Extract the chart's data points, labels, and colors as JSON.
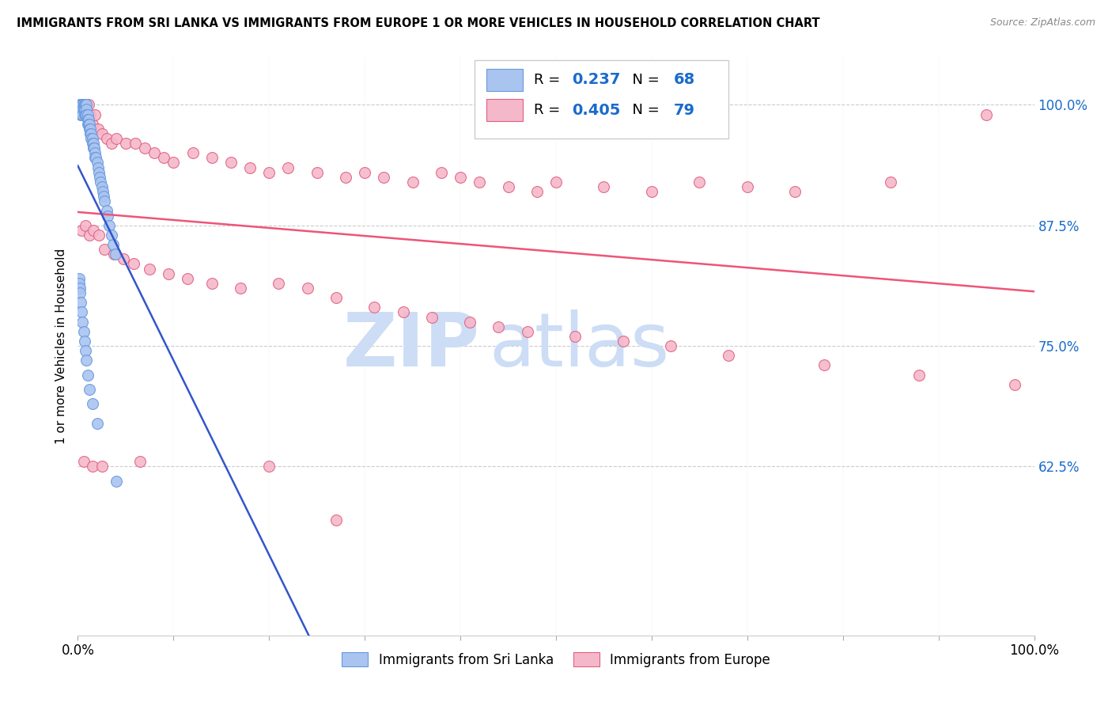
{
  "title": "IMMIGRANTS FROM SRI LANKA VS IMMIGRANTS FROM EUROPE 1 OR MORE VEHICLES IN HOUSEHOLD CORRELATION CHART",
  "source": "Source: ZipAtlas.com",
  "ylabel": "1 or more Vehicles in Household",
  "xlim": [
    0.0,
    1.0
  ],
  "ylim": [
    0.45,
    1.05
  ],
  "yticks": [
    0.625,
    0.75,
    0.875,
    1.0
  ],
  "ytick_labels": [
    "62.5%",
    "75.0%",
    "87.5%",
    "100.0%"
  ],
  "xtick_labels": [
    "0.0%",
    "100.0%"
  ],
  "sri_lanka_color": "#aac4f0",
  "europe_color": "#f5b8cb",
  "sri_lanka_edge_color": "#6699dd",
  "europe_edge_color": "#e06080",
  "sri_lanka_line_color": "#3355cc",
  "europe_line_color": "#ee5577",
  "sri_lanka_R": 0.237,
  "sri_lanka_N": 68,
  "europe_R": 0.405,
  "europe_N": 79,
  "blue_text_color": "#1a6bcc",
  "watermark_zip": "ZIP",
  "watermark_atlas": "atlas",
  "watermark_color": "#ccddf5",
  "sl_label": "Immigrants from Sri Lanka",
  "eu_label": "Immigrants from Europe",
  "sri_lanka_x": [
    0.002,
    0.003,
    0.003,
    0.004,
    0.004,
    0.005,
    0.005,
    0.005,
    0.006,
    0.006,
    0.007,
    0.007,
    0.007,
    0.008,
    0.008,
    0.009,
    0.009,
    0.009,
    0.01,
    0.01,
    0.01,
    0.011,
    0.011,
    0.012,
    0.012,
    0.013,
    0.013,
    0.014,
    0.014,
    0.015,
    0.015,
    0.016,
    0.016,
    0.017,
    0.018,
    0.018,
    0.019,
    0.02,
    0.021,
    0.022,
    0.023,
    0.024,
    0.025,
    0.026,
    0.027,
    0.028,
    0.03,
    0.031,
    0.033,
    0.035,
    0.037,
    0.039,
    0.001,
    0.001,
    0.002,
    0.002,
    0.003,
    0.004,
    0.005,
    0.006,
    0.007,
    0.008,
    0.009,
    0.01,
    0.012,
    0.015,
    0.02,
    0.04
  ],
  "sri_lanka_y": [
    1.0,
    1.0,
    0.99,
    1.0,
    0.99,
    1.0,
    0.995,
    0.99,
    1.0,
    0.995,
    1.0,
    0.995,
    0.99,
    1.0,
    0.99,
    1.0,
    0.995,
    0.99,
    0.99,
    0.985,
    0.98,
    0.985,
    0.98,
    0.98,
    0.975,
    0.975,
    0.97,
    0.97,
    0.965,
    0.965,
    0.96,
    0.96,
    0.955,
    0.955,
    0.95,
    0.945,
    0.945,
    0.94,
    0.935,
    0.93,
    0.925,
    0.92,
    0.915,
    0.91,
    0.905,
    0.9,
    0.89,
    0.885,
    0.875,
    0.865,
    0.855,
    0.845,
    0.82,
    0.815,
    0.81,
    0.805,
    0.795,
    0.785,
    0.775,
    0.765,
    0.755,
    0.745,
    0.735,
    0.72,
    0.705,
    0.69,
    0.67,
    0.61
  ],
  "europe_x": [
    0.003,
    0.005,
    0.007,
    0.009,
    0.011,
    0.013,
    0.015,
    0.018,
    0.021,
    0.025,
    0.03,
    0.035,
    0.04,
    0.05,
    0.06,
    0.07,
    0.08,
    0.09,
    0.1,
    0.12,
    0.14,
    0.16,
    0.18,
    0.2,
    0.22,
    0.25,
    0.28,
    0.3,
    0.32,
    0.35,
    0.38,
    0.4,
    0.42,
    0.45,
    0.48,
    0.5,
    0.55,
    0.6,
    0.65,
    0.7,
    0.75,
    0.85,
    0.95,
    0.004,
    0.008,
    0.012,
    0.016,
    0.022,
    0.028,
    0.038,
    0.048,
    0.058,
    0.075,
    0.095,
    0.115,
    0.14,
    0.17,
    0.21,
    0.24,
    0.27,
    0.31,
    0.34,
    0.37,
    0.41,
    0.44,
    0.47,
    0.52,
    0.57,
    0.62,
    0.68,
    0.78,
    0.88,
    0.98,
    0.006,
    0.015,
    0.025,
    0.065,
    0.2,
    0.27
  ],
  "europe_y": [
    1.0,
    1.0,
    1.0,
    0.99,
    1.0,
    0.99,
    0.98,
    0.99,
    0.975,
    0.97,
    0.965,
    0.96,
    0.965,
    0.96,
    0.96,
    0.955,
    0.95,
    0.945,
    0.94,
    0.95,
    0.945,
    0.94,
    0.935,
    0.93,
    0.935,
    0.93,
    0.925,
    0.93,
    0.925,
    0.92,
    0.93,
    0.925,
    0.92,
    0.915,
    0.91,
    0.92,
    0.915,
    0.91,
    0.92,
    0.915,
    0.91,
    0.92,
    0.99,
    0.87,
    0.875,
    0.865,
    0.87,
    0.865,
    0.85,
    0.845,
    0.84,
    0.835,
    0.83,
    0.825,
    0.82,
    0.815,
    0.81,
    0.815,
    0.81,
    0.8,
    0.79,
    0.785,
    0.78,
    0.775,
    0.77,
    0.765,
    0.76,
    0.755,
    0.75,
    0.74,
    0.73,
    0.72,
    0.71,
    0.63,
    0.625,
    0.625,
    0.63,
    0.625,
    0.57
  ]
}
